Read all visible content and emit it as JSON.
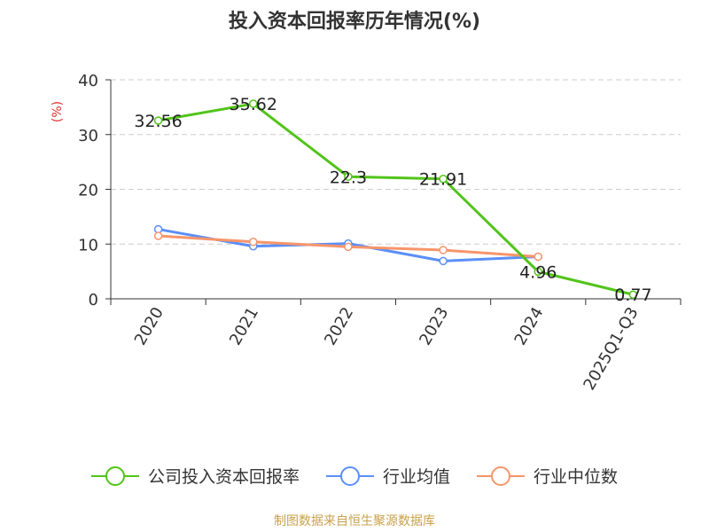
{
  "chart_data": {
    "type": "line",
    "title": "投入资本回报率历年情况(%)",
    "ylabel": "(%)",
    "categories": [
      "2020",
      "2021",
      "2022",
      "2023",
      "2024",
      "2025Q1-Q3"
    ],
    "ylim": [
      0,
      40
    ],
    "yticks": [
      0,
      10,
      20,
      30,
      40
    ],
    "grid": true,
    "legend_position": "bottom",
    "series": [
      {
        "name": "公司投入资本回报率",
        "color": "#52c41a",
        "values": [
          32.56,
          35.62,
          22.3,
          21.91,
          4.96,
          0.77
        ],
        "labels": [
          "32.56",
          "35.62",
          "22.3",
          "21.91",
          "4.96",
          "0.77"
        ]
      },
      {
        "name": "行业均值",
        "color": "#5b8ff9",
        "values": [
          12.7,
          9.6,
          10.1,
          6.9,
          7.7,
          null
        ]
      },
      {
        "name": "行业中位数",
        "color": "#f7956a",
        "values": [
          11.5,
          10.4,
          9.5,
          8.9,
          7.7,
          null
        ]
      }
    ]
  },
  "footer": {
    "source": "制图数据来自恒生聚源数据库"
  }
}
